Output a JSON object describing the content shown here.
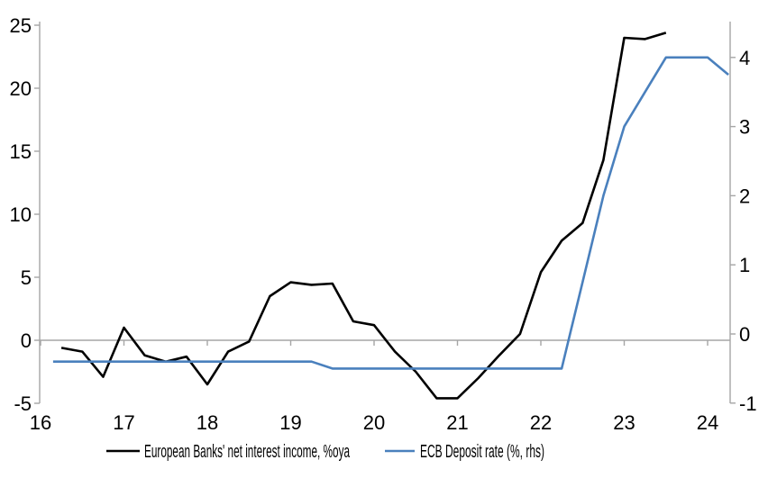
{
  "page": {
    "background": "#ffffff",
    "title": ""
  },
  "colors": {
    "axis_gray": "#a6a6a6",
    "series_nii": "#000000",
    "series_ecb": "#4a80bd",
    "label_text": "#000000"
  },
  "legend": {
    "position": "bottom",
    "items": [
      {
        "id": "nii",
        "label": "European Banks' net interest income, %oya",
        "color": "#000000"
      },
      {
        "id": "ecb",
        "label": "ECB Deposit rate (%, rhs)",
        "color": "#4a80bd"
      }
    ]
  },
  "chart_data": {
    "type": "line",
    "title": "",
    "xlabel": "",
    "ylabel_left": "",
    "ylabel_right": "",
    "grid": "zero-line-only",
    "legend_position": "bottom",
    "x_axis": {
      "range": [
        16,
        24.27
      ],
      "ticks": [
        16,
        17,
        18,
        19,
        20,
        21,
        22,
        23,
        24
      ],
      "tick_labels": [
        "16",
        "17",
        "18",
        "19",
        "20",
        "21",
        "22",
        "23",
        "24"
      ]
    },
    "left_axis": {
      "range": [
        -5,
        25.3
      ],
      "ticks": [
        25,
        20,
        15,
        10,
        5,
        0,
        -5
      ],
      "tick_labels": [
        "25",
        "20",
        "15",
        "10",
        "5",
        "0",
        "-5"
      ]
    },
    "right_axis": {
      "range": [
        -1,
        4.5
      ],
      "ticks": [
        4,
        3,
        2,
        1,
        0,
        -1
      ],
      "tick_labels": [
        "4",
        "3",
        "2",
        "1",
        "0",
        "-1"
      ]
    },
    "series": [
      {
        "name": "European Banks' net interest income, %oya",
        "axis": "left",
        "color": "#000000",
        "points": [
          [
            16.25,
            -0.6
          ],
          [
            16.5,
            -0.9
          ],
          [
            16.75,
            -2.9
          ],
          [
            17.0,
            1.0
          ],
          [
            17.25,
            -1.2
          ],
          [
            17.5,
            -1.7
          ],
          [
            17.75,
            -1.3
          ],
          [
            18.0,
            -3.5
          ],
          [
            18.25,
            -0.9
          ],
          [
            18.5,
            -0.1
          ],
          [
            18.75,
            3.5
          ],
          [
            19.0,
            4.6
          ],
          [
            19.25,
            4.4
          ],
          [
            19.5,
            4.5
          ],
          [
            19.75,
            1.5
          ],
          [
            20.0,
            1.2
          ],
          [
            20.25,
            -0.9
          ],
          [
            20.5,
            -2.5
          ],
          [
            20.75,
            -4.6
          ],
          [
            21.0,
            -4.6
          ],
          [
            21.25,
            -3.0
          ],
          [
            21.5,
            -1.2
          ],
          [
            21.75,
            0.5
          ],
          [
            22.0,
            5.4
          ],
          [
            22.25,
            7.9
          ],
          [
            22.5,
            9.3
          ],
          [
            22.75,
            14.3
          ],
          [
            23.0,
            24.0
          ],
          [
            23.25,
            23.9
          ],
          [
            23.5,
            24.4
          ]
        ]
      },
      {
        "name": "ECB Deposit rate (%, rhs)",
        "axis": "right",
        "color": "#4a80bd",
        "points": [
          [
            16.15,
            -0.4
          ],
          [
            16.25,
            -0.4
          ],
          [
            16.5,
            -0.4
          ],
          [
            16.75,
            -0.4
          ],
          [
            17.0,
            -0.4
          ],
          [
            17.25,
            -0.4
          ],
          [
            17.5,
            -0.4
          ],
          [
            17.75,
            -0.4
          ],
          [
            18.0,
            -0.4
          ],
          [
            18.25,
            -0.4
          ],
          [
            18.5,
            -0.4
          ],
          [
            18.75,
            -0.4
          ],
          [
            19.0,
            -0.4
          ],
          [
            19.25,
            -0.4
          ],
          [
            19.5,
            -0.5
          ],
          [
            19.75,
            -0.5
          ],
          [
            20.0,
            -0.5
          ],
          [
            20.25,
            -0.5
          ],
          [
            20.5,
            -0.5
          ],
          [
            20.75,
            -0.5
          ],
          [
            21.0,
            -0.5
          ],
          [
            21.25,
            -0.5
          ],
          [
            21.5,
            -0.5
          ],
          [
            21.75,
            -0.5
          ],
          [
            22.0,
            -0.5
          ],
          [
            22.25,
            -0.5
          ],
          [
            22.5,
            0.75
          ],
          [
            22.75,
            2.0
          ],
          [
            23.0,
            3.0
          ],
          [
            23.25,
            3.5
          ],
          [
            23.5,
            4.0
          ],
          [
            23.75,
            4.0
          ],
          [
            24.0,
            4.0
          ],
          [
            24.25,
            3.75
          ]
        ]
      }
    ]
  }
}
